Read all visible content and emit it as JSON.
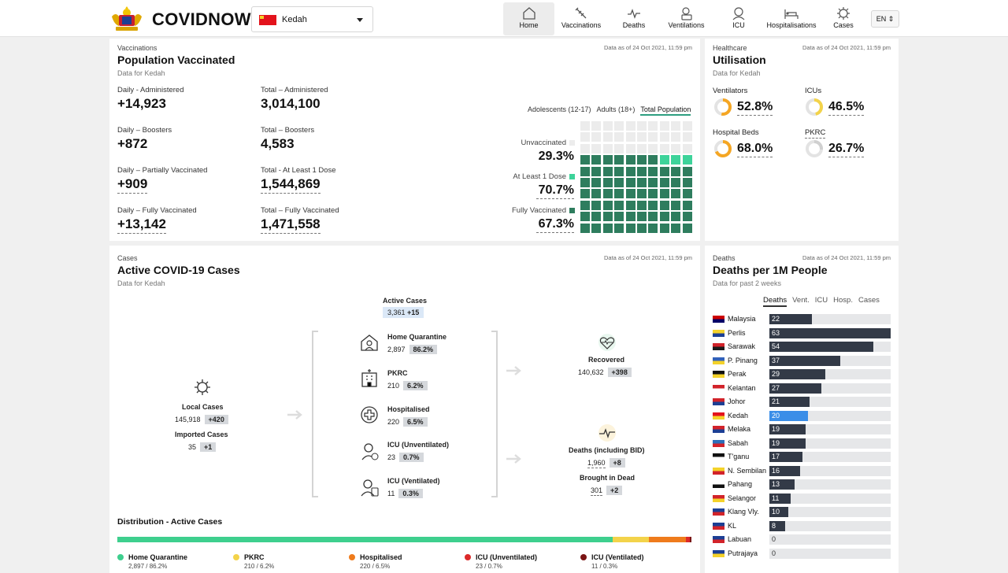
{
  "header": {
    "brand": "COVIDNOW",
    "state": "Kedah",
    "lang": "EN",
    "nav": [
      {
        "label": "Home",
        "icon": "home-icon",
        "active": true
      },
      {
        "label": "Vaccinations",
        "icon": "syringe-icon"
      },
      {
        "label": "Deaths",
        "icon": "heartbeat-icon"
      },
      {
        "label": "Ventilations",
        "icon": "ventilator-icon"
      },
      {
        "label": "ICU",
        "icon": "icu-icon"
      },
      {
        "label": "Hospitalisations",
        "icon": "hospital-bed-icon"
      },
      {
        "label": "Cases",
        "icon": "virus-icon"
      }
    ]
  },
  "vacc": {
    "kicker": "Vaccinations",
    "title": "Population Vaccinated",
    "sub": "Data for Kedah",
    "stamp": "Data as of 24 Oct 2021, 11:59 pm",
    "stats": [
      {
        "label": "Daily - Administered",
        "value": "+14,923"
      },
      {
        "label": "Total – Administered",
        "value": "3,014,100"
      },
      {
        "label": "Daily – Boosters",
        "value": "+872"
      },
      {
        "label": "Total – Boosters",
        "value": "4,583"
      },
      {
        "label": "Daily – Partially Vaccinated",
        "value": "+909"
      },
      {
        "label": "Total - At Least 1 Dose",
        "value": "1,544,869"
      },
      {
        "label": "Daily – Fully Vaccinated",
        "value": "+13,142"
      },
      {
        "label": "Total – Fully Vaccinated",
        "value": "1,471,558"
      }
    ],
    "tabs": [
      "Adolescents (12-17)",
      "Adults (18+)",
      "Total Population"
    ],
    "legend": [
      {
        "label": "Unvaccinated",
        "value": "29.3%",
        "color": "#ececec"
      },
      {
        "label": "At Least 1 Dose",
        "value": "70.7%",
        "color": "#3dd39a"
      },
      {
        "label": "Fully Vaccinated",
        "value": "67.3%",
        "color": "#2e7d5e"
      }
    ],
    "waffle": {
      "total": 100,
      "full": 67,
      "partial": 3,
      "colors": {
        "empty": "#ececec",
        "partial": "#3dd39a",
        "full": "#2e7d5e"
      }
    }
  },
  "util": {
    "kicker": "Healthcare",
    "title": "Utilisation",
    "sub": "Data for Kedah",
    "stamp": "Data as of 24 Oct 2021, 11:59 pm",
    "items": [
      {
        "label": "Ventilators",
        "value": "52.8%",
        "pct": 52.8,
        "color": "#f5a623"
      },
      {
        "label": "ICUs",
        "value": "46.5%",
        "pct": 46.5,
        "color": "#f3d34a"
      },
      {
        "label": "Hospital Beds",
        "value": "68.0%",
        "pct": 68.0,
        "color": "#f5a623"
      },
      {
        "label": "PKRC",
        "value": "26.7%",
        "pct": 26.7,
        "color": "#d0d0d0"
      }
    ]
  },
  "cases": {
    "kicker": "Cases",
    "title": "Active COVID-19 Cases",
    "sub": "Data for Kedah",
    "stamp": "Data as of 24 Oct 2021, 11:59 pm",
    "active": {
      "label": "Active Cases",
      "value": "3,361",
      "delta": "+15"
    },
    "local": {
      "label": "Local Cases",
      "value": "145,918",
      "delta": "+420"
    },
    "imported": {
      "label": "Imported Cases",
      "value": "35",
      "delta": "+1"
    },
    "flows": [
      {
        "label": "Home Quarantine",
        "value": "2,897",
        "pct": "86.2%",
        "icon": "home-quarantine-icon"
      },
      {
        "label": "PKRC",
        "value": "210",
        "pct": "6.2%",
        "icon": "pkrc-building-icon"
      },
      {
        "label": "Hospitalised",
        "value": "220",
        "pct": "6.5%",
        "icon": "hospital-cross-icon"
      },
      {
        "label": "ICU (Unventilated)",
        "value": "23",
        "pct": "0.7%",
        "icon": "icu-unventilated-icon"
      },
      {
        "label": "ICU (Ventilated)",
        "value": "11",
        "pct": "0.3%",
        "icon": "icu-ventilated-icon"
      }
    ],
    "recovered": {
      "label": "Recovered",
      "value": "140,632",
      "delta": "+398"
    },
    "deaths": {
      "label": "Deaths (including BID)",
      "value": "1,960",
      "delta": "+8"
    },
    "bid": {
      "label": "Brought in Dead",
      "value": "301",
      "delta": "+2"
    },
    "dist": {
      "title": "Distribution - Active Cases",
      "items": [
        {
          "label": "Home Quarantine",
          "sub": "2,897 / 86.2%",
          "pct": 86.2,
          "color": "#3ecf8e"
        },
        {
          "label": "PKRC",
          "sub": "210 / 6.2%",
          "pct": 6.2,
          "color": "#f3d34a"
        },
        {
          "label": "Hospitalised",
          "sub": "220 / 6.5%",
          "pct": 6.5,
          "color": "#ef7b1c"
        },
        {
          "label": "ICU (Unventilated)",
          "sub": "23 / 0.7%",
          "pct": 0.7,
          "color": "#dc2a2a"
        },
        {
          "label": "ICU (Ventilated)",
          "sub": "11 / 0.3%",
          "pct": 0.3,
          "color": "#7a1414"
        }
      ]
    }
  },
  "deaths1m": {
    "kicker": "Deaths",
    "title": "Deaths per 1M People",
    "sub": "Data for past 2 weeks",
    "stamp": "Data as of 24 Oct 2021, 11:59 pm",
    "tabs": [
      "Deaths",
      "Vent.",
      "ICU",
      "Hosp.",
      "Cases"
    ],
    "max": 63,
    "highlight_color": "#3b8ee8",
    "bar_color": "#333a47",
    "rows": [
      {
        "name": "Malaysia",
        "value": 22
      },
      {
        "name": "Perlis",
        "value": 63
      },
      {
        "name": "Sarawak",
        "value": 54
      },
      {
        "name": "P. Pinang",
        "value": 37
      },
      {
        "name": "Perak",
        "value": 29
      },
      {
        "name": "Kelantan",
        "value": 27
      },
      {
        "name": "Johor",
        "value": 21
      },
      {
        "name": "Kedah",
        "value": 20,
        "highlight": true
      },
      {
        "name": "Melaka",
        "value": 19
      },
      {
        "name": "Sabah",
        "value": 19
      },
      {
        "name": "T'ganu",
        "value": 17
      },
      {
        "name": "N. Sembilan",
        "value": 16
      },
      {
        "name": "Pahang",
        "value": 13
      },
      {
        "name": "Selangor",
        "value": 11
      },
      {
        "name": "Klang Vly.",
        "value": 10
      },
      {
        "name": "KL",
        "value": 8
      },
      {
        "name": "Labuan",
        "value": 0
      },
      {
        "name": "Putrajaya",
        "value": 0
      }
    ]
  }
}
